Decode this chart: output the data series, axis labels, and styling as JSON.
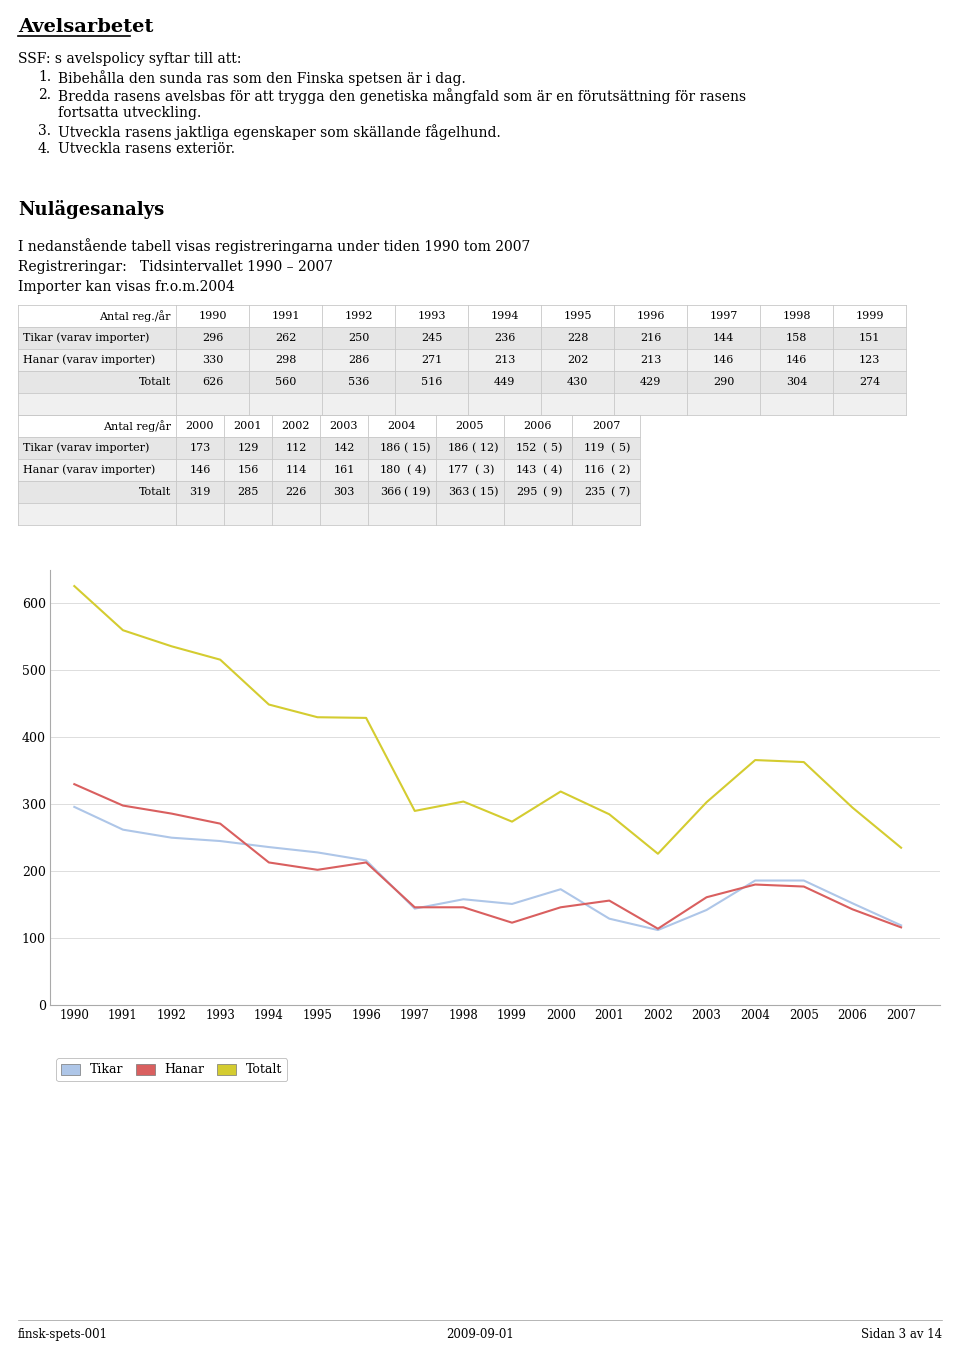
{
  "title": "Avelsarbetet",
  "ssf_line": "SSF: s avelspolicy syftar till att:",
  "item1": "Bibehålla den sunda ras som den Finska spetsen är i dag.",
  "item2a": "Bredda rasens avelsbas för att trygga den genetiska mångfald som är en förutsättning för rasens",
  "item2b": "fortsatta utveckling.",
  "item3": "Utveckla rasens jaktliga egenskaper som skällande fågelhund.",
  "item4": "Utveckla rasens exteriör.",
  "section_title": "Nulägesanalys",
  "section_text1": "I nedanstående tabell visas registreringarna under tiden 1990 tom 2007",
  "section_text2": "Registreringar:   Tidsintervallet 1990 – 2007",
  "section_text3": "Importer kan visas fr.o.m.2004",
  "table1_header": [
    "Antal reg./år",
    "1990",
    "1991",
    "1992",
    "1993",
    "1994",
    "1995",
    "1996",
    "1997",
    "1998",
    "1999"
  ],
  "table1_rows": [
    [
      "Tikar (varav importer)",
      "296",
      "262",
      "250",
      "245",
      "236",
      "228",
      "216",
      "144",
      "158",
      "151"
    ],
    [
      "Hanar (varav importer)",
      "330",
      "298",
      "286",
      "271",
      "213",
      "202",
      "213",
      "146",
      "146",
      "123"
    ],
    [
      "Totalt",
      "626",
      "560",
      "536",
      "516",
      "449",
      "430",
      "429",
      "290",
      "304",
      "274"
    ]
  ],
  "table2_rows": [
    [
      "Tikar (varav importer)",
      "173",
      "129",
      "112",
      "142",
      "186",
      "( 15)",
      "186",
      "( 12)",
      "152",
      "( 5)",
      "119",
      "( 5)"
    ],
    [
      "Hanar (varav importer)",
      "146",
      "156",
      "114",
      "161",
      "180",
      "( 4)",
      "177",
      "( 3)",
      "143",
      "( 4)",
      "116",
      "( 2)"
    ],
    [
      "Totalt",
      "319",
      "285",
      "226",
      "303",
      "366",
      "( 19)",
      "363",
      "( 15)",
      "295",
      "( 9)",
      "235",
      "( 7)"
    ]
  ],
  "years": [
    1990,
    1991,
    1992,
    1993,
    1994,
    1995,
    1996,
    1997,
    1998,
    1999,
    2000,
    2001,
    2002,
    2003,
    2004,
    2005,
    2006,
    2007
  ],
  "tikar": [
    296,
    262,
    250,
    245,
    236,
    228,
    216,
    144,
    158,
    151,
    173,
    129,
    112,
    142,
    186,
    186,
    152,
    119
  ],
  "hanar": [
    330,
    298,
    286,
    271,
    213,
    202,
    213,
    146,
    146,
    123,
    146,
    156,
    114,
    161,
    180,
    177,
    143,
    116
  ],
  "totalt": [
    626,
    560,
    536,
    516,
    449,
    430,
    429,
    290,
    304,
    274,
    319,
    285,
    226,
    303,
    366,
    363,
    295,
    235
  ],
  "tikar_color": "#aec6e8",
  "hanar_color": "#d95f5f",
  "totalt_color": "#d4cc30",
  "footer_left": "finsk-spets-001",
  "footer_center": "2009-09-01",
  "footer_right": "Sidan 3 av 14",
  "bg_color": "#ffffff",
  "table_row_colors": [
    "#e6e6e6",
    "#f0f0f0"
  ],
  "table_header_color": "#ffffff",
  "grid_color": "#c8c8c8"
}
